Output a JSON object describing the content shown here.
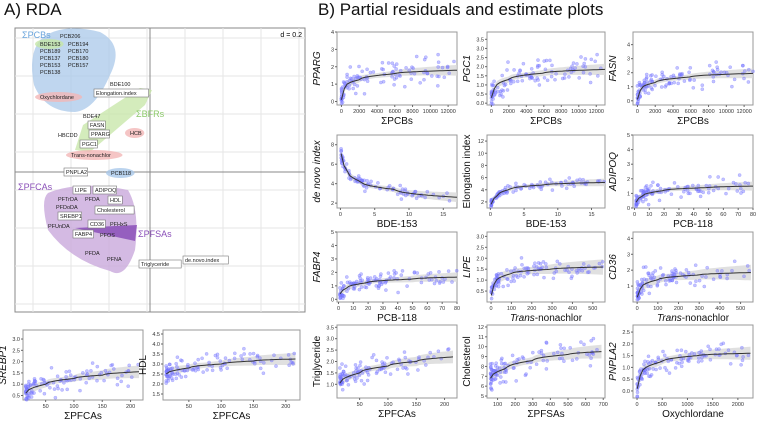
{
  "titles": {
    "a": "A) RDA",
    "b": "B) Partial residuals and estimate plots"
  },
  "rda": {
    "scale_label": "d = 0.2",
    "group_labels": [
      "ΣPCBs",
      "ΣBFRs",
      "ΣPFCAs",
      "ΣPFSAs"
    ],
    "colors": {
      "pcb": "#a9c8ea",
      "bfr": "#c5e6a6",
      "pfca": "#c9a9dc",
      "pfsa": "#8a4fb8",
      "pest": "#f2b6b6",
      "pcbtext": "#6aa4dc",
      "bfrtext": "#8cc96a",
      "pfcatext": "#8a4fb8"
    },
    "variables": [
      "PCB206",
      "PCB194",
      "PCB189",
      "BDE153",
      "PCB170",
      "PCB137",
      "PCB180",
      "PCB153",
      "PCB157",
      "PCB138",
      "Oxychlordane",
      "BDE100",
      "BDE47",
      "HBCDD",
      "HCB",
      "Trans-nonachlor",
      "PCB118",
      "PFTrDA",
      "PFDA",
      "PFDoDA",
      "PFUnDA",
      "PFHxS",
      "PFOS",
      "PFDA",
      "PFNA"
    ],
    "responses": [
      "Elongation.index",
      "FASN",
      "PPARG",
      "PGC1",
      "PNPLA2",
      "LIPE",
      "ADIPOQ",
      "HDL",
      "Cholesterol",
      "SREBP1",
      "CD36",
      "FABP4",
      "Triglyceride",
      "de.novo.index"
    ]
  },
  "chart_data": [
    {
      "type": "scatter",
      "ylabel": "PPARG",
      "italic": true,
      "xlabel": "ΣPCBs",
      "xlim": [
        -500,
        13000
      ],
      "ylim": [
        -0.2,
        4
      ],
      "xticks": [
        0,
        2000,
        4000,
        6000,
        8000,
        10000,
        12000
      ],
      "yticks": [
        0,
        1,
        2,
        3,
        4
      ],
      "fit": [
        [
          0,
          0.1
        ],
        [
          500,
          0.9
        ],
        [
          2000,
          1.25
        ],
        [
          6000,
          1.6
        ],
        [
          13000,
          1.8
        ]
      ],
      "band": 0.22,
      "n": 110,
      "sd": 0.7
    },
    {
      "type": "scatter",
      "ylabel": "PGC1",
      "italic": true,
      "xlabel": "ΣPCBs",
      "xlim": [
        -500,
        13000
      ],
      "ylim": [
        -0.1,
        3.9
      ],
      "xticks": [
        0,
        2000,
        4000,
        6000,
        8000,
        10000,
        12000
      ],
      "yticks": [
        "0.0",
        "0.5",
        "1.0",
        "1.5",
        "2.0",
        "2.5",
        "3.0",
        "3.5"
      ],
      "fit": [
        [
          0,
          0.3
        ],
        [
          500,
          0.9
        ],
        [
          2000,
          1.3
        ],
        [
          6000,
          1.65
        ],
        [
          13000,
          1.85
        ]
      ],
      "band": 0.22,
      "n": 110,
      "sd": 0.7
    },
    {
      "type": "scatter",
      "ylabel": "FASN",
      "italic": true,
      "xlabel": "ΣPCBs",
      "xlim": [
        -500,
        13000
      ],
      "ylim": [
        -0.3,
        4.9
      ],
      "xticks": [
        0,
        2000,
        4000,
        6000,
        8000,
        10000,
        12000
      ],
      "yticks": [
        0,
        1,
        2,
        3,
        4
      ],
      "fit": [
        [
          0,
          0.1
        ],
        [
          500,
          0.9
        ],
        [
          2000,
          1.3
        ],
        [
          6000,
          1.7
        ],
        [
          13000,
          1.95
        ]
      ],
      "band": 0.25,
      "n": 110,
      "sd": 0.8
    },
    {
      "type": "scatter",
      "ylabel": "de novo index",
      "italic": true,
      "xlabel": "BDE-153",
      "xlim": [
        -0.5,
        17
      ],
      "ylim": [
        1.5,
        9
      ],
      "xticks": [
        0,
        5,
        10,
        15
      ],
      "yticks": [
        2,
        4,
        6,
        8
      ],
      "fit": [
        [
          0.1,
          7.1
        ],
        [
          1,
          5.3
        ],
        [
          3,
          4.2
        ],
        [
          8,
          3.4
        ],
        [
          17,
          2.6
        ]
      ],
      "band": 0.35,
      "n": 90,
      "sd": 0.6
    },
    {
      "type": "scatter",
      "ylabel": "Elongation index",
      "italic": false,
      "xlabel": "BDE-153",
      "xlim": [
        -0.5,
        17
      ],
      "ylim": [
        1,
        13
      ],
      "xticks": [
        0,
        5,
        10,
        15
      ],
      "yticks": [
        2,
        4,
        6,
        8,
        10,
        12
      ],
      "fit": [
        [
          0.1,
          1.6
        ],
        [
          1,
          3.0
        ],
        [
          3,
          4.1
        ],
        [
          8,
          4.8
        ],
        [
          17,
          5.2
        ]
      ],
      "band": 0.45,
      "n": 90,
      "sd": 0.8
    },
    {
      "type": "scatter",
      "ylabel": "ADIPOQ",
      "italic": true,
      "xlabel": "PCB-118",
      "xlim": [
        -1,
        80
      ],
      "ylim": [
        0,
        5
      ],
      "xticks": [
        0,
        10,
        20,
        30,
        40,
        50,
        60,
        70,
        80
      ],
      "yticks": [
        0,
        1,
        2,
        3,
        4,
        5
      ],
      "fit": [
        [
          1,
          0.4
        ],
        [
          5,
          0.8
        ],
        [
          20,
          1.2
        ],
        [
          50,
          1.4
        ],
        [
          80,
          1.5
        ]
      ],
      "band": 0.22,
      "n": 110,
      "sd": 0.6
    },
    {
      "type": "scatter",
      "ylabel": "FABP4",
      "italic": true,
      "xlabel": "PCB-118",
      "xlim": [
        -1,
        80
      ],
      "ylim": [
        -0.2,
        5
      ],
      "xticks": [
        0,
        10,
        20,
        30,
        40,
        50,
        60,
        70,
        80
      ],
      "yticks": [
        0,
        1,
        2,
        3,
        4,
        5
      ],
      "fit": [
        [
          1,
          0.4
        ],
        [
          5,
          0.8
        ],
        [
          20,
          1.25
        ],
        [
          50,
          1.5
        ],
        [
          80,
          1.65
        ]
      ],
      "band": 0.25,
      "n": 110,
      "sd": 0.7
    },
    {
      "type": "scatter",
      "ylabel": "LIPE",
      "italic": true,
      "xlabel": "Trans-nonachlor",
      "xlim": [
        -20,
        560
      ],
      "ylim": [
        0,
        3.2
      ],
      "xticks": [
        0,
        100,
        200,
        300,
        400,
        500
      ],
      "yticks": [
        "0.5",
        "1.0",
        "1.5",
        "2.0",
        "2.5",
        "3.0"
      ],
      "fit": [
        [
          1,
          0.3
        ],
        [
          20,
          0.9
        ],
        [
          100,
          1.3
        ],
        [
          300,
          1.5
        ],
        [
          550,
          1.6
        ]
      ],
      "band": 0.25,
      "n": 110,
      "sd": 0.45
    },
    {
      "type": "scatter",
      "ylabel": "CD36",
      "italic": true,
      "xlabel": "Trans-nonachlor",
      "xlim": [
        -20,
        560
      ],
      "ylim": [
        0,
        4.4
      ],
      "xticks": [
        0,
        100,
        200,
        300,
        400,
        500
      ],
      "yticks": [
        1,
        2,
        3,
        4
      ],
      "fit": [
        [
          1,
          0.3
        ],
        [
          20,
          0.9
        ],
        [
          100,
          1.4
        ],
        [
          300,
          1.7
        ],
        [
          550,
          1.85
        ]
      ],
      "band": 0.35,
      "n": 110,
      "sd": 0.7
    },
    {
      "type": "scatter",
      "ylabel": "Triglyceride",
      "italic": false,
      "xlabel": "ΣPFCAs",
      "xlim": [
        10,
        222
      ],
      "ylim": [
        0.4,
        3.6
      ],
      "xticks": [
        50,
        100,
        150,
        200
      ],
      "yticks": [
        "1.0",
        "1.5",
        "2.0",
        "2.5",
        "3.0",
        "3.5"
      ],
      "fit": [
        [
          15,
          1.05
        ],
        [
          50,
          1.5
        ],
        [
          100,
          1.8
        ],
        [
          150,
          2.0
        ],
        [
          215,
          2.2
        ]
      ],
      "band": 0.2,
      "n": 110,
      "sd": 0.5
    },
    {
      "type": "scatter",
      "ylabel": "Cholesterol",
      "italic": false,
      "xlabel": "ΣPFSAs",
      "xlim": [
        40,
        710
      ],
      "ylim": [
        4.8,
        12.2
      ],
      "xticks": [
        100,
        200,
        300,
        400,
        500,
        600,
        700
      ],
      "yticks": [
        5,
        6,
        7,
        8,
        9,
        10,
        11,
        12
      ],
      "fit": [
        [
          60,
          6.8
        ],
        [
          150,
          7.8
        ],
        [
          300,
          8.6
        ],
        [
          500,
          9.2
        ],
        [
          690,
          9.5
        ]
      ],
      "band": 0.5,
      "n": 110,
      "sd": 1.4
    },
    {
      "type": "scatter",
      "ylabel": "PNPLA2",
      "italic": true,
      "xlabel": "Oxychlordane",
      "xlim": [
        -80,
        2300
      ],
      "ylim": [
        -0.3,
        2.8
      ],
      "xticks": [
        0,
        500,
        1000,
        1500,
        2000
      ],
      "yticks": [
        "0.0",
        "0.5",
        "1.0",
        "1.5",
        "2.0",
        "2.5"
      ],
      "fit": [
        [
          5,
          0.1
        ],
        [
          100,
          0.8
        ],
        [
          500,
          1.25
        ],
        [
          1200,
          1.5
        ],
        [
          2250,
          1.6
        ]
      ],
      "band": 0.2,
      "n": 110,
      "sd": 0.5
    },
    {
      "type": "scatter",
      "ylabel": "SREBP1",
      "italic": true,
      "xlabel": "ΣPFCAs",
      "xlim": [
        10,
        222
      ],
      "ylim": [
        0.3,
        3.4
      ],
      "xticks": [
        50,
        100,
        150,
        200
      ],
      "yticks": [
        "0.5",
        "1.0",
        "1.5",
        "2.0",
        "2.5",
        "3.0"
      ],
      "fit": [
        [
          15,
          0.6
        ],
        [
          50,
          1.0
        ],
        [
          100,
          1.25
        ],
        [
          150,
          1.4
        ],
        [
          215,
          1.55
        ]
      ],
      "band": 0.2,
      "n": 110,
      "sd": 0.55
    },
    {
      "type": "scatter",
      "ylabel": "HDL",
      "italic": false,
      "xlabel": "ΣPFCAs",
      "xlim": [
        10,
        222
      ],
      "ylim": [
        1.2,
        4.7
      ],
      "xticks": [
        50,
        100,
        150,
        200
      ],
      "yticks": [
        "1.5",
        "2.0",
        "2.5",
        "3.0",
        "3.5",
        "4.0",
        "4.5"
      ],
      "fit": [
        [
          15,
          2.5
        ],
        [
          50,
          2.8
        ],
        [
          100,
          3.0
        ],
        [
          150,
          3.15
        ],
        [
          215,
          3.25
        ]
      ],
      "band": 0.22,
      "n": 110,
      "sd": 0.6
    }
  ]
}
